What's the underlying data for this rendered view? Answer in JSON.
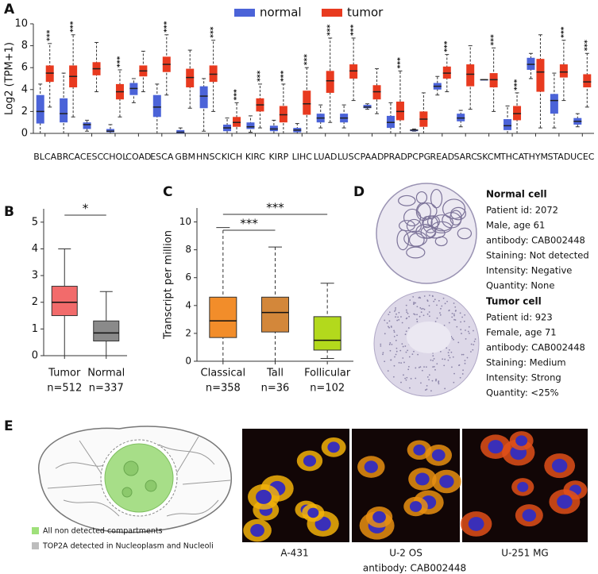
{
  "chart_data": [
    {
      "panel": "A",
      "type": "box",
      "ylabel": "Log2 (TPM+1)",
      "ylim": [
        0,
        10
      ],
      "yticks": [
        0,
        2,
        4,
        6,
        8,
        10
      ],
      "legend": "top",
      "categories": [
        "BLCA",
        "BRCA",
        "CESC",
        "CHOL",
        "COAD",
        "ESCA",
        "GBM",
        "HNSC",
        "KICH",
        "KIRC",
        "KIRP",
        "LIHC",
        "LUAD",
        "LUSC",
        "PAAD",
        "PRAD",
        "PCPG",
        "READ",
        "SARC",
        "SKCM",
        "THCA",
        "THYM",
        "STAD",
        "UCEC"
      ],
      "series": [
        {
          "name": "normal",
          "color": "#4b63d8",
          "min": [
            0,
            0,
            0.2,
            0,
            2.8,
            0,
            0,
            0.2,
            0,
            0.1,
            0,
            0,
            0.5,
            0.5,
            2.2,
            0,
            0.2,
            3.5,
            0.6,
            4.9,
            0,
            5,
            0.5,
            0.6
          ],
          "q1": [
            0.9,
            1.0,
            0.4,
            0.1,
            3.5,
            1.5,
            0,
            2.3,
            0.2,
            0.4,
            0.2,
            0.1,
            1.0,
            1.0,
            2.3,
            0.5,
            0.2,
            4.0,
            1.1,
            4.9,
            0.3,
            5.8,
            1.8,
            0.8
          ],
          "median": [
            2.0,
            1.8,
            0.8,
            0.2,
            4.1,
            2.4,
            0.1,
            3.4,
            0.5,
            0.6,
            0.4,
            0.3,
            1.4,
            1.4,
            2.4,
            1.0,
            0.3,
            4.3,
            1.4,
            4.9,
            0.7,
            6.3,
            3.0,
            1.1
          ],
          "q3": [
            3.5,
            3.2,
            1.0,
            0.4,
            4.6,
            3.5,
            0.3,
            4.3,
            0.8,
            1.0,
            0.7,
            0.5,
            1.8,
            1.8,
            2.6,
            1.6,
            0.35,
            4.6,
            1.8,
            4.9,
            1.3,
            6.9,
            3.6,
            1.4
          ],
          "max": [
            4.5,
            5.5,
            1.2,
            0.8,
            5,
            4.5,
            0.5,
            5,
            1.4,
            1.6,
            1.2,
            0.9,
            2.6,
            2.6,
            2.7,
            2.8,
            0.4,
            5.2,
            2.1,
            4.9,
            2.5,
            7.3,
            5.5,
            1.8
          ]
        },
        {
          "name": "tumor",
          "color": "#e83a1f",
          "min": [
            2.4,
            1.5,
            3.8,
            1.5,
            3.8,
            3.5,
            2.3,
            2,
            0,
            0.5,
            0,
            0,
            1,
            3,
            1.8,
            0,
            0,
            3.8,
            2.2,
            2,
            0,
            0.5,
            3,
            2.4
          ],
          "q1": [
            4.7,
            4.2,
            5.3,
            3.1,
            5.2,
            5.6,
            4.2,
            4.7,
            0.6,
            2.0,
            1.0,
            1.7,
            3.7,
            5.0,
            3.1,
            1.2,
            0.6,
            5.0,
            4.3,
            4.2,
            1.2,
            3.8,
            5.1,
            4.2
          ],
          "median": [
            5.5,
            5.2,
            5.9,
            3.8,
            5.7,
            6.3,
            5.1,
            5.4,
            1.0,
            2.6,
            1.7,
            2.7,
            4.8,
            5.7,
            3.8,
            2.0,
            1.3,
            5.5,
            5.4,
            4.9,
            1.8,
            5.6,
            5.6,
            4.7
          ],
          "q3": [
            6.2,
            6.2,
            6.5,
            4.5,
            6.2,
            7.0,
            5.9,
            6.2,
            1.5,
            3.2,
            2.5,
            3.9,
            5.7,
            6.3,
            4.4,
            2.9,
            2.0,
            6.1,
            6.3,
            5.5,
            2.5,
            6.8,
            6.3,
            5.4
          ],
          "max": [
            8.2,
            9,
            8.3,
            5.8,
            7.5,
            9,
            7.6,
            8.5,
            2.8,
            4.5,
            4.5,
            6,
            8.7,
            8.7,
            5.9,
            5.7,
            3.7,
            7.2,
            8,
            7.8,
            3.7,
            9,
            8.5,
            7.3
          ]
        }
      ],
      "significance": [
        "***",
        "***",
        null,
        "***",
        null,
        "***",
        null,
        "***",
        "***",
        "***",
        "***",
        "***",
        "***",
        "***",
        null,
        "***",
        null,
        "***",
        null,
        "***",
        "***",
        null,
        "***",
        "***"
      ]
    },
    {
      "panel": "B",
      "type": "box",
      "ylim": [
        0,
        5.5
      ],
      "yticks": [
        0,
        1,
        2,
        3,
        4,
        5
      ],
      "categories": [
        "Tumor",
        "Normal"
      ],
      "n_labels": [
        "n=512",
        "n=337"
      ],
      "colors": [
        "#f26b6b",
        "#8a8a8a"
      ],
      "min": [
        0,
        0
      ],
      "q1": [
        1.5,
        0.55
      ],
      "median": [
        2.0,
        0.85
      ],
      "q3": [
        2.6,
        1.3
      ],
      "max": [
        4.0,
        2.4
      ],
      "comparisons": [
        {
          "label": "*",
          "pair": [
            0,
            1
          ]
        }
      ]
    },
    {
      "panel": "C",
      "type": "box",
      "ylabel": "Transcript per million",
      "ylim": [
        0,
        11
      ],
      "yticks": [
        0,
        2,
        4,
        6,
        8,
        10
      ],
      "categories": [
        "Classical",
        "Tall",
        "Follicular"
      ],
      "n_labels": [
        "n=358",
        "n=36",
        "n=102"
      ],
      "colors": [
        "#f28d2a",
        "#d3873a",
        "#b3d91c"
      ],
      "min": [
        0,
        0,
        0.2
      ],
      "q1": [
        1.7,
        2.1,
        0.8
      ],
      "median": [
        2.9,
        3.5,
        1.5
      ],
      "q3": [
        4.6,
        4.6,
        3.2
      ],
      "max": [
        9.6,
        8.2,
        5.6
      ],
      "comparisons": [
        {
          "label": "***",
          "pair": [
            0,
            1
          ]
        },
        {
          "label": "***",
          "pair": [
            0,
            2
          ]
        }
      ]
    }
  ],
  "panel_d": {
    "panel": "D",
    "tissue": [
      {
        "title": "Normal cell",
        "lines": [
          "Patient id: 2072",
          "Male,  age 61",
          "antibody:  CAB002448",
          "Staining:  Not detected",
          "Intensity:  Negative",
          "Quantity:  None"
        ]
      },
      {
        "title": "Tumor cell",
        "lines": [
          "Patient id: 923",
          "Female, age 71",
          "antibody: CAB002448",
          "Staining:  Medium",
          "Intensity: Strong",
          "Quantity:  <25%"
        ]
      }
    ]
  },
  "panel_e": {
    "panel": "E",
    "legend": [
      "All non detected compartments",
      "TOP2A detected in Nucleoplasm and Nucleoli"
    ],
    "cell_lines": [
      "A-431",
      "U-2 OS",
      "U-251 MG"
    ],
    "antibody": "antibody: CAB002448"
  }
}
